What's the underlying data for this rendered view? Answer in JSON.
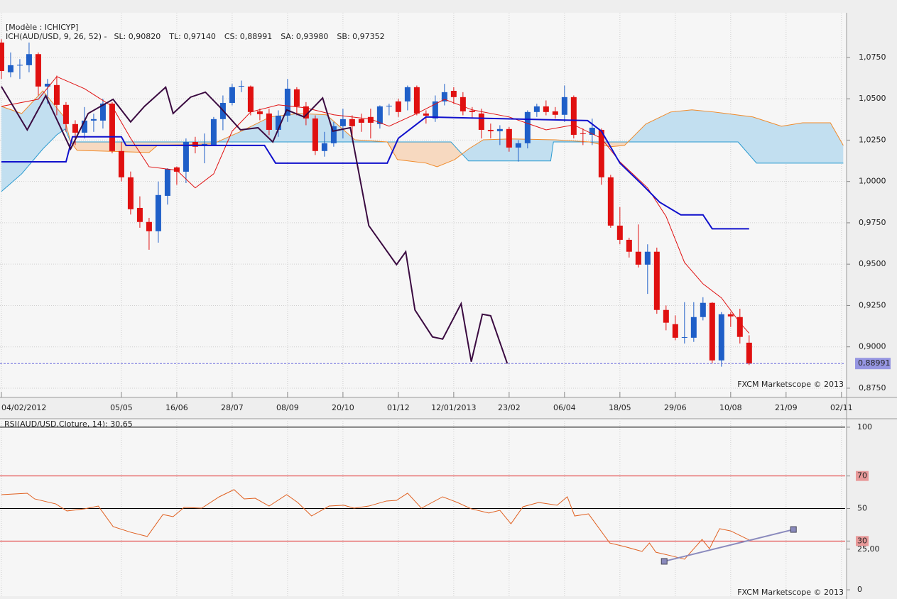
{
  "chart_data": [
    {
      "type": "candlestick",
      "model": "[Modèle : ICHICYP]",
      "indicator": "ICH(AUD/USD, 9, 26, 52) -",
      "watermark": "FXCM Marketscope © 2013",
      "up_color": "#1f5fc8",
      "down_color": "#e01010",
      "open": [
        1.084,
        1.066,
        1.0703,
        1.0703,
        1.077,
        1.0574,
        1.0583,
        1.0463,
        1.0347,
        1.0295,
        1.0368,
        1.0368,
        1.0471,
        1.0184,
        1.0025,
        0.984,
        0.9755,
        0.9699,
        0.9913,
        1.0085,
        1.0059,
        1.0239,
        1.0218,
        1.0218,
        1.0377,
        1.0475,
        1.0574,
        1.0574,
        1.0424,
        1.0411,
        1.0312,
        1.0398,
        1.0557,
        1.0454,
        1.0381,
        1.0184,
        1.0231,
        1.0334,
        1.0377,
        1.0377,
        1.039,
        1.0347,
        1.0454,
        1.0484,
        1.0484,
        1.057,
        1.0411,
        1.0381,
        1.0484,
        1.0548,
        1.051,
        1.0428,
        1.0411,
        1.0312,
        1.0304,
        1.0317,
        1.0205,
        1.0231,
        1.042,
        1.0454,
        1.0424,
        1.0403,
        1.051,
        1.0291,
        1.0282,
        1.0312,
        1.0025,
        0.9733,
        0.9647,
        0.9575,
        0.9497,
        0.9575,
        0.9223,
        0.9137,
        0.9055,
        0.9055,
        0.918,
        0.9266,
        0.8918,
        0.9197,
        0.918,
        0.9025
      ],
      "high": [
        1.086,
        1.078,
        1.074,
        1.084,
        1.078,
        1.062,
        1.064,
        1.048,
        1.037,
        1.045,
        1.041,
        1.05,
        1.048,
        1.024,
        1.006,
        0.991,
        0.978,
        1.0,
        1.008,
        1.009,
        1.026,
        1.027,
        1.029,
        1.039,
        1.052,
        1.059,
        1.061,
        1.058,
        1.044,
        1.044,
        1.043,
        1.062,
        1.057,
        1.048,
        1.04,
        1.03,
        1.036,
        1.044,
        1.04,
        1.041,
        1.044,
        1.046,
        1.047,
        1.05,
        1.058,
        1.058,
        1.043,
        1.052,
        1.059,
        1.057,
        1.054,
        1.045,
        1.044,
        1.035,
        1.034,
        1.033,
        1.025,
        1.043,
        1.047,
        1.049,
        1.045,
        1.058,
        1.052,
        1.032,
        1.038,
        1.032,
        1.004,
        0.9845,
        0.966,
        0.974,
        0.962,
        0.96,
        0.925,
        0.919,
        0.927,
        0.927,
        0.93,
        0.927,
        0.921,
        0.921,
        0.923,
        0.907
      ],
      "low": [
        1.062,
        1.063,
        1.062,
        1.066,
        1.052,
        1.047,
        1.04,
        1.03,
        1.022,
        1.026,
        1.03,
        1.032,
        1.017,
        1.0,
        0.98,
        0.972,
        0.9587,
        0.963,
        0.986,
        0.998,
        0.999,
        1.017,
        1.011,
        1.022,
        1.031,
        1.046,
        1.054,
        1.04,
        1.037,
        1.028,
        1.027,
        1.036,
        1.04,
        1.034,
        1.016,
        1.015,
        1.021,
        1.026,
        1.028,
        1.03,
        1.026,
        1.032,
        1.04,
        1.039,
        1.043,
        1.04,
        1.035,
        1.036,
        1.046,
        1.047,
        1.04,
        1.038,
        1.026,
        1.026,
        1.022,
        1.018,
        1.012,
        1.02,
        1.039,
        1.04,
        1.038,
        1.036,
        1.026,
        1.022,
        1.022,
        0.998,
        0.972,
        0.962,
        0.954,
        0.948,
        0.932,
        0.92,
        0.91,
        0.904,
        0.902,
        0.903,
        0.916,
        0.89,
        0.888,
        0.912,
        0.902,
        0.889
      ],
      "close": [
        1.0668,
        1.0703,
        1.0705,
        1.077,
        1.0574,
        1.0591,
        1.0463,
        1.0347,
        1.0295,
        1.0368,
        1.0377,
        1.0471,
        1.0184,
        1.0025,
        0.9832,
        0.9755,
        0.9699,
        0.9918,
        1.0076,
        1.0059,
        1.0239,
        1.021,
        1.0227,
        1.0377,
        1.0475,
        1.057,
        1.0578,
        1.042,
        1.0407,
        1.0312,
        1.0398,
        1.0561,
        1.0454,
        1.0381,
        1.0184,
        1.0231,
        1.0334,
        1.0377,
        1.0334,
        1.0355,
        1.0355,
        1.0454,
        1.0458,
        1.042,
        1.057,
        1.0411,
        1.0398,
        1.0484,
        1.054,
        1.051,
        1.0424,
        1.042,
        1.0312,
        1.0304,
        1.0317,
        1.0205,
        1.0231,
        1.042,
        1.0454,
        1.042,
        1.0403,
        1.051,
        1.0282,
        1.0287,
        1.0325,
        1.0025,
        0.9733,
        0.9647,
        0.9575,
        0.9497,
        0.9575,
        0.9223,
        0.9146,
        0.9055,
        0.9059,
        0.918,
        0.9266,
        0.8918,
        0.9197,
        0.9184,
        0.906,
        0.8899
      ],
      "xlim": [
        -0.15,
        91.4
      ],
      "xticks": [
        {
          "value": 0,
          "label": "04/02/2012"
        },
        {
          "value": 13,
          "label": "05/05"
        },
        {
          "value": 19,
          "label": "16/06"
        },
        {
          "value": 25,
          "label": "28/07"
        },
        {
          "value": 31,
          "label": "08/09"
        },
        {
          "value": 37,
          "label": "20/10"
        },
        {
          "value": 43,
          "label": "01/12"
        },
        {
          "value": 49,
          "label": "12/01/2013"
        },
        {
          "value": 55,
          "label": "23/02"
        },
        {
          "value": 61,
          "label": "06/04"
        },
        {
          "value": 67,
          "label": "18/05"
        },
        {
          "value": 73,
          "label": "29/06"
        },
        {
          "value": 79,
          "label": "10/08"
        },
        {
          "value": 85,
          "label": "21/09"
        },
        {
          "value": 91,
          "label": "02/11"
        }
      ],
      "ylim": [
        0.8694,
        1.102
      ],
      "yticks": [
        {
          "value": 0.875,
          "label": "0,8750"
        },
        {
          "value": 0.9,
          "label": "0,9000"
        },
        {
          "value": 0.925,
          "label": "0,9250"
        },
        {
          "value": 0.95,
          "label": "0,9500"
        },
        {
          "value": 0.975,
          "label": "0,9750"
        },
        {
          "value": 1,
          "label": "1,0000"
        },
        {
          "value": 1.025,
          "label": "1,0250"
        },
        {
          "value": 1.05,
          "label": "1,0500"
        },
        {
          "value": 1.075,
          "label": "1,0750"
        }
      ],
      "grid": true,
      "series": [
        {
          "name": "SL: 0,90820",
          "color": "#e01010",
          "x": [
            0,
            4,
            6,
            9,
            12,
            14,
            16,
            19,
            21,
            23,
            25,
            27,
            30,
            33,
            36,
            40,
            42,
            45,
            48,
            51,
            55,
            59,
            62,
            65,
            67,
            70,
            72,
            74,
            76,
            78,
            80,
            81
          ],
          "values": [
            1.0454,
            1.0497,
            1.0634,
            1.0561,
            1.0454,
            1.0261,
            1.0089,
            1.0068,
            0.9961,
            1.0046,
            1.0304,
            1.042,
            1.0463,
            1.0445,
            1.0403,
            1.0377,
            1.0334,
            1.0411,
            1.0497,
            1.0433,
            1.039,
            1.0312,
            1.0342,
            1.0261,
            1.0119,
            0.9961,
            0.9789,
            0.951,
            0.9381,
            0.9296,
            0.9146,
            0.9082
          ]
        },
        {
          "name": "TL: 0,97140",
          "color": "#1010cc",
          "x": [
            0,
            7,
            7.7,
            13,
            13.5,
            28.5,
            29.7,
            41.8,
            43,
            44,
            46,
            63.5,
            65,
            67,
            69.4,
            71.3,
            73.6,
            76,
            77,
            81
          ],
          "values": [
            1.0119,
            1.0119,
            1.027,
            1.027,
            1.0218,
            1.0218,
            1.0111,
            1.0111,
            1.0261,
            1.0304,
            1.039,
            1.0368,
            1.0304,
            1.0111,
            0.9982,
            0.9875,
            0.9798,
            0.9798,
            0.9714,
            0.9714
          ]
        },
        {
          "name": "CS: 0,88991",
          "color": "#3a0a40",
          "x": [
            0,
            2.8,
            4.8,
            7.5,
            9.4,
            12.1,
            14,
            15.5,
            17.8,
            18.6,
            20.5,
            22.1,
            23.6,
            25.9,
            27.8,
            29.4,
            30.9,
            32.8,
            34.8,
            35.9,
            37.8,
            39.8,
            42.8,
            43.8,
            44.8,
            46.7,
            47.8,
            49.8,
            50.9,
            52.1,
            53,
            54.8
          ],
          "values": [
            1.0574,
            1.0312,
            1.0518,
            1.0197,
            1.0411,
            1.0497,
            1.036,
            1.0454,
            1.057,
            1.0411,
            1.051,
            1.054,
            1.0454,
            1.0312,
            1.0325,
            1.0239,
            1.0433,
            1.039,
            1.0505,
            1.0304,
            1.0325,
            0.9733,
            0.9497,
            0.9575,
            0.9223,
            0.906,
            0.9047,
            0.9261,
            0.891,
            0.9197,
            0.9188,
            0.8899
          ]
        },
        {
          "name": "SA: 0,93980",
          "color": "#f08a2a",
          "x": [
            0,
            2.2,
            4.5,
            6.8,
            7.5,
            8.2,
            16,
            16.9,
            22.9,
            26,
            29.1,
            32.2,
            35.2,
            38.3,
            41.8,
            42.9,
            46,
            47.2,
            49.1,
            50.6,
            52.2,
            55.2,
            60,
            63.7,
            66,
            67.5,
            69.8,
            72.5,
            74.8,
            77.2,
            81.4,
            84.5,
            86.8,
            89.8,
            91.2
          ],
          "values": [
            1.0454,
            1.0411,
            1.0548,
            1.039,
            1.0239,
            1.0188,
            1.0175,
            1.0218,
            1.0227,
            1.0304,
            1.039,
            1.0411,
            1.0403,
            1.0252,
            1.0239,
            1.0132,
            1.0111,
            1.0089,
            1.0132,
            1.0196,
            1.0252,
            1.0257,
            1.0252,
            1.0239,
            1.021,
            1.0218,
            1.0347,
            1.042,
            1.0433,
            1.042,
            1.039,
            1.0334,
            1.0355,
            1.0355,
            1.0218
          ]
        },
        {
          "name": "SB: 0,97352",
          "color": "#2a9ad0",
          "x": [
            0,
            2.2,
            4.5,
            6,
            6.9,
            7.5,
            48.7,
            50.6,
            59.5,
            59.8,
            79.8,
            81.8,
            91.2
          ],
          "values": [
            0.9939,
            1.0046,
            1.0197,
            1.0282,
            1.0317,
            1.0239,
            1.0239,
            1.0124,
            1.0124,
            1.0239,
            1.0239,
            1.0111,
            1.0111
          ]
        }
      ],
      "cloud": {
        "up_color": "#c2dff0",
        "down_color": "#f7d9c0"
      },
      "last_close": {
        "value": 0.88991,
        "label": "0,88991",
        "color": "#7070dd"
      }
    },
    {
      "type": "line",
      "title": "RSI(AUD/USD.Cloture, 14): 30,65",
      "watermark": "FXCM Marketscope © 2013",
      "xlim": [
        -0.15,
        91.4
      ],
      "ylim": [
        -3.9,
        105.2
      ],
      "yticks": [
        0,
        {
          "value": 25,
          "label": "25,00"
        },
        30,
        50,
        70,
        100
      ],
      "levels": [
        {
          "value": 100,
          "color": "#000000"
        },
        {
          "value": 70,
          "color": "#e03030"
        },
        {
          "value": 50,
          "color": "#000000"
        },
        {
          "value": 30,
          "color": "#e03030"
        }
      ],
      "series": [
        {
          "color": "#e06020",
          "x": [
            0,
            2.8,
            3.6,
            5.9,
            7.1,
            9,
            10.5,
            12.1,
            14,
            15.8,
            17.5,
            18.6,
            19.8,
            21.7,
            23.6,
            25.2,
            26.3,
            27.5,
            29,
            30.9,
            32.1,
            33.6,
            35.5,
            37.1,
            38.2,
            39.8,
            41.7,
            42.8,
            44,
            45.5,
            47.8,
            49.4,
            50.9,
            52.8,
            54,
            55.2,
            56.5,
            58.2,
            60.2,
            61.3,
            62.1,
            63.6,
            65.9,
            67.5,
            69.4,
            70.2,
            70.9,
            72.5,
            74,
            75.9,
            76.7,
            77.8,
            79,
            81
          ],
          "values": [
            58.5,
            59.4,
            55.9,
            52.8,
            48.5,
            49.8,
            51.5,
            38.9,
            35.4,
            32.8,
            46.3,
            45,
            50.7,
            50.2,
            57.2,
            61.6,
            55.9,
            56.3,
            51.5,
            58.5,
            53.7,
            45.4,
            51.5,
            52,
            50.2,
            51.5,
            54.6,
            55,
            59.4,
            50.2,
            57.2,
            53.7,
            49.8,
            47.2,
            48.9,
            40.6,
            51.1,
            53.7,
            52,
            57.2,
            45.4,
            46.7,
            28.8,
            26.6,
            23.6,
            28.8,
            23.1,
            21,
            18.8,
            31,
            25.3,
            37.6,
            36.2,
            30.65
          ]
        }
      ],
      "trendline": {
        "color": "#8a8abd",
        "x": [
          71.8,
          85.8
        ],
        "values": [
          17.5,
          37.1
        ]
      }
    }
  ]
}
